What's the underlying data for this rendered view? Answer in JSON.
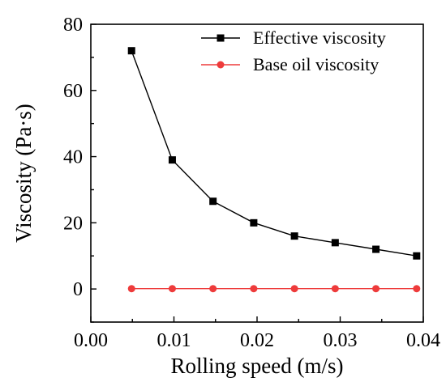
{
  "chart_data": {
    "type": "line",
    "title": "",
    "xlabel": "Rolling speed (m/s)",
    "ylabel": "Viscosity (Pa·s)",
    "xlim": [
      0.0,
      0.04
    ],
    "ylim": [
      -10,
      80
    ],
    "x_ticks": [
      "0.00",
      "0.01",
      "0.02",
      "0.03",
      "0.04"
    ],
    "y_ticks": [
      "0",
      "20",
      "40",
      "60",
      "80"
    ],
    "legend_position": "top-right",
    "grid": false,
    "series": [
      {
        "name": "Effective viscosity",
        "marker": "square",
        "color": "#000000",
        "x": [
          0.0049,
          0.0098,
          0.0147,
          0.0196,
          0.0245,
          0.0294,
          0.0343,
          0.0392
        ],
        "y": [
          72,
          39,
          26.5,
          20,
          16,
          14,
          12,
          10
        ]
      },
      {
        "name": "Base oil viscosity",
        "marker": "circle",
        "color": "#ee3b3b",
        "x": [
          0.0049,
          0.0098,
          0.0147,
          0.0196,
          0.0245,
          0.0294,
          0.0343,
          0.0392
        ],
        "y": [
          0.1,
          0.1,
          0.1,
          0.1,
          0.1,
          0.1,
          0.1,
          0.1
        ]
      }
    ]
  }
}
